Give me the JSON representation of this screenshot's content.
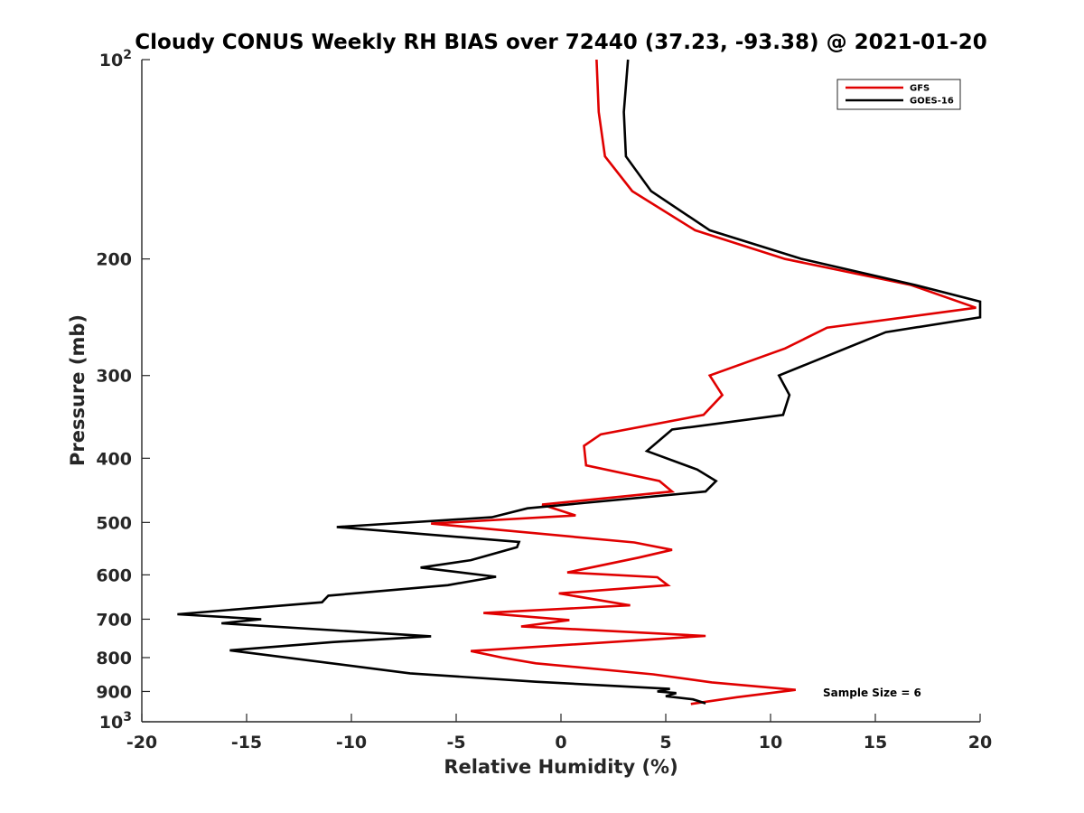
{
  "chart_data": {
    "type": "line",
    "title": "Cloudy CONUS Weekly RH BIAS over 72440 (37.23, -93.38) @ 2021-01-20",
    "xlabel": "Relative Humidity (%)",
    "ylabel": "Pressure (mb)",
    "xlim": [
      -20,
      20
    ],
    "ylim": [
      100,
      1000
    ],
    "y_scale": "log",
    "y_reversed": true,
    "x_ticks": [
      -20,
      -15,
      -10,
      -5,
      0,
      5,
      10,
      15,
      20
    ],
    "x_tick_labels": [
      "-20",
      "-15",
      "-10",
      "-5",
      "0",
      "5",
      "10",
      "15",
      "20"
    ],
    "y_ticks": [
      {
        "value": 100,
        "base": "10",
        "exp": "2"
      },
      {
        "value": 200,
        "label": "200"
      },
      {
        "value": 300,
        "label": "300"
      },
      {
        "value": 400,
        "label": "400"
      },
      {
        "value": 500,
        "label": "500"
      },
      {
        "value": 600,
        "label": "600"
      },
      {
        "value": 700,
        "label": "700"
      },
      {
        "value": 800,
        "label": "800"
      },
      {
        "value": 900,
        "label": "900"
      },
      {
        "value": 1000,
        "base": "10",
        "exp": "3"
      }
    ],
    "grid": false,
    "legend_position": "top-right",
    "series": [
      {
        "name": "GFS",
        "color": "#e00000",
        "points": [
          [
            1.7,
            100
          ],
          [
            1.8,
            120
          ],
          [
            2.1,
            140
          ],
          [
            3.4,
            158
          ],
          [
            6.4,
            181
          ],
          [
            10.7,
            200
          ],
          [
            16.7,
            219
          ],
          [
            19.8,
            237
          ],
          [
            12.7,
            254
          ],
          [
            10.7,
            273
          ],
          [
            7.1,
            300
          ],
          [
            7.7,
            321
          ],
          [
            6.8,
            344
          ],
          [
            1.9,
            368
          ],
          [
            1.1,
            383
          ],
          [
            1.2,
            410
          ],
          [
            4.7,
            433
          ],
          [
            5.3,
            449
          ],
          [
            -0.9,
            470
          ],
          [
            0.7,
            488
          ],
          [
            -6.2,
            502
          ],
          [
            3.5,
            536
          ],
          [
            5.3,
            550
          ],
          [
            3.7,
            565
          ],
          [
            0.3,
            595
          ],
          [
            4.6,
            605
          ],
          [
            5.1,
            622
          ],
          [
            -0.1,
            640
          ],
          [
            3.3,
            667
          ],
          [
            -3.7,
            685
          ],
          [
            0.4,
            702
          ],
          [
            -1.9,
            718
          ],
          [
            6.9,
            742
          ],
          [
            -4.3,
            782
          ],
          [
            -2.8,
            800
          ],
          [
            -1.2,
            816
          ],
          [
            4.4,
            848
          ],
          [
            7.2,
            872
          ],
          [
            11.2,
            895
          ],
          [
            8.4,
            918
          ],
          [
            6.2,
            940
          ]
        ]
      },
      {
        "name": "GOES-16",
        "color": "#000000",
        "points": [
          [
            3.2,
            100
          ],
          [
            3.0,
            120
          ],
          [
            3.1,
            140
          ],
          [
            4.3,
            158
          ],
          [
            7.1,
            181
          ],
          [
            11.5,
            200
          ],
          [
            16.9,
            219
          ],
          [
            20.0,
            232
          ],
          [
            20.0,
            245
          ],
          [
            15.5,
            258
          ],
          [
            10.4,
            300
          ],
          [
            10.9,
            321
          ],
          [
            10.6,
            344
          ],
          [
            5.3,
            362
          ],
          [
            4.1,
            390
          ],
          [
            6.5,
            416
          ],
          [
            7.4,
            433
          ],
          [
            6.9,
            449
          ],
          [
            -1.6,
            476
          ],
          [
            -3.3,
            491
          ],
          [
            -10.7,
            508
          ],
          [
            -2.0,
            535
          ],
          [
            -2.1,
            545
          ],
          [
            -4.3,
            570
          ],
          [
            -6.7,
            585
          ],
          [
            -3.1,
            604
          ],
          [
            -5.4,
            622
          ],
          [
            -11.1,
            645
          ],
          [
            -11.4,
            660
          ],
          [
            -18.3,
            688
          ],
          [
            -14.3,
            700
          ],
          [
            -16.2,
            710
          ],
          [
            -6.2,
            743
          ],
          [
            -10.9,
            758
          ],
          [
            -15.8,
            780
          ],
          [
            -7.2,
            845
          ],
          [
            -1.2,
            870
          ],
          [
            5.2,
            892
          ],
          [
            4.6,
            900
          ],
          [
            5.5,
            905
          ],
          [
            5.0,
            915
          ],
          [
            6.3,
            925
          ],
          [
            6.9,
            938
          ]
        ]
      }
    ],
    "annotation": "Sample Size = 6"
  }
}
